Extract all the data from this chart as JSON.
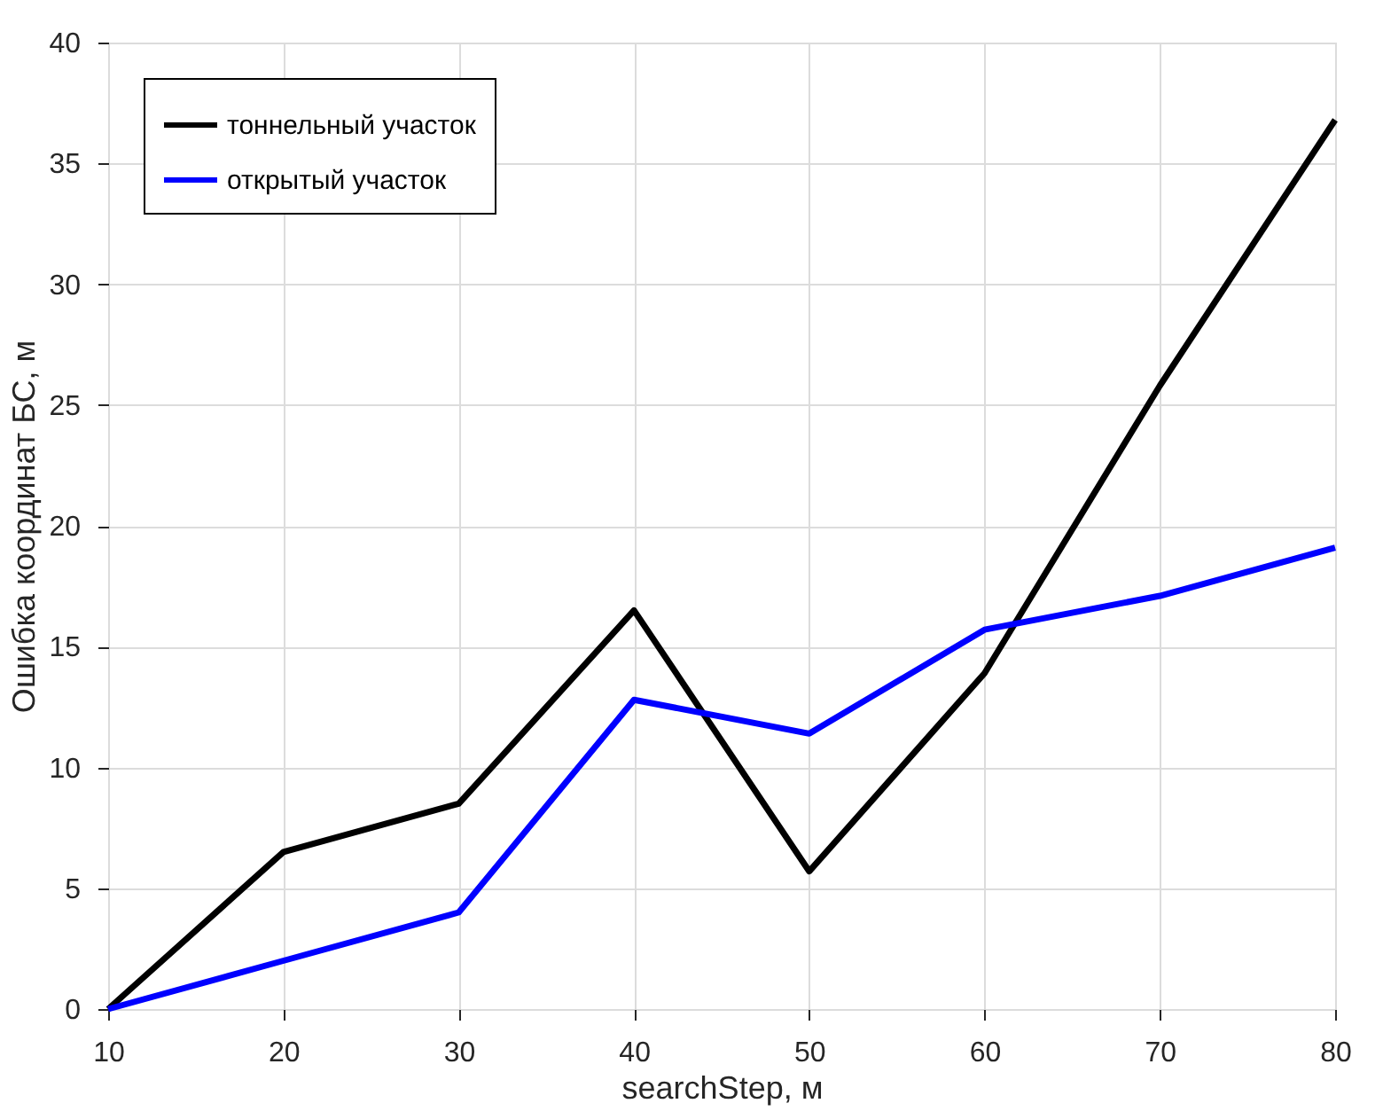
{
  "chart_data": {
    "type": "line",
    "xlabel": "searchStep, м",
    "ylabel": "Ошибка координат БС, м",
    "x": [
      10,
      20,
      30,
      40,
      50,
      60,
      70,
      80
    ],
    "series": [
      {
        "name": "тоннельный участок",
        "color": "#000000",
        "values": [
          0,
          6.5,
          8.5,
          16.5,
          5.7,
          13.9,
          25.8,
          36.8
        ]
      },
      {
        "name": "открытый участок",
        "color": "#0000ff",
        "values": [
          0,
          2.0,
          4.0,
          12.8,
          11.4,
          15.7,
          17.1,
          19.1
        ]
      }
    ],
    "xlim": [
      10,
      80
    ],
    "xticks": [
      10,
      20,
      30,
      40,
      50,
      60,
      70,
      80
    ],
    "ylim": [
      0,
      40
    ],
    "yticks": [
      0,
      5,
      10,
      15,
      20,
      25,
      30,
      35,
      40
    ],
    "grid": true,
    "legend": "top left",
    "marker": "none",
    "line_style": "solid"
  }
}
